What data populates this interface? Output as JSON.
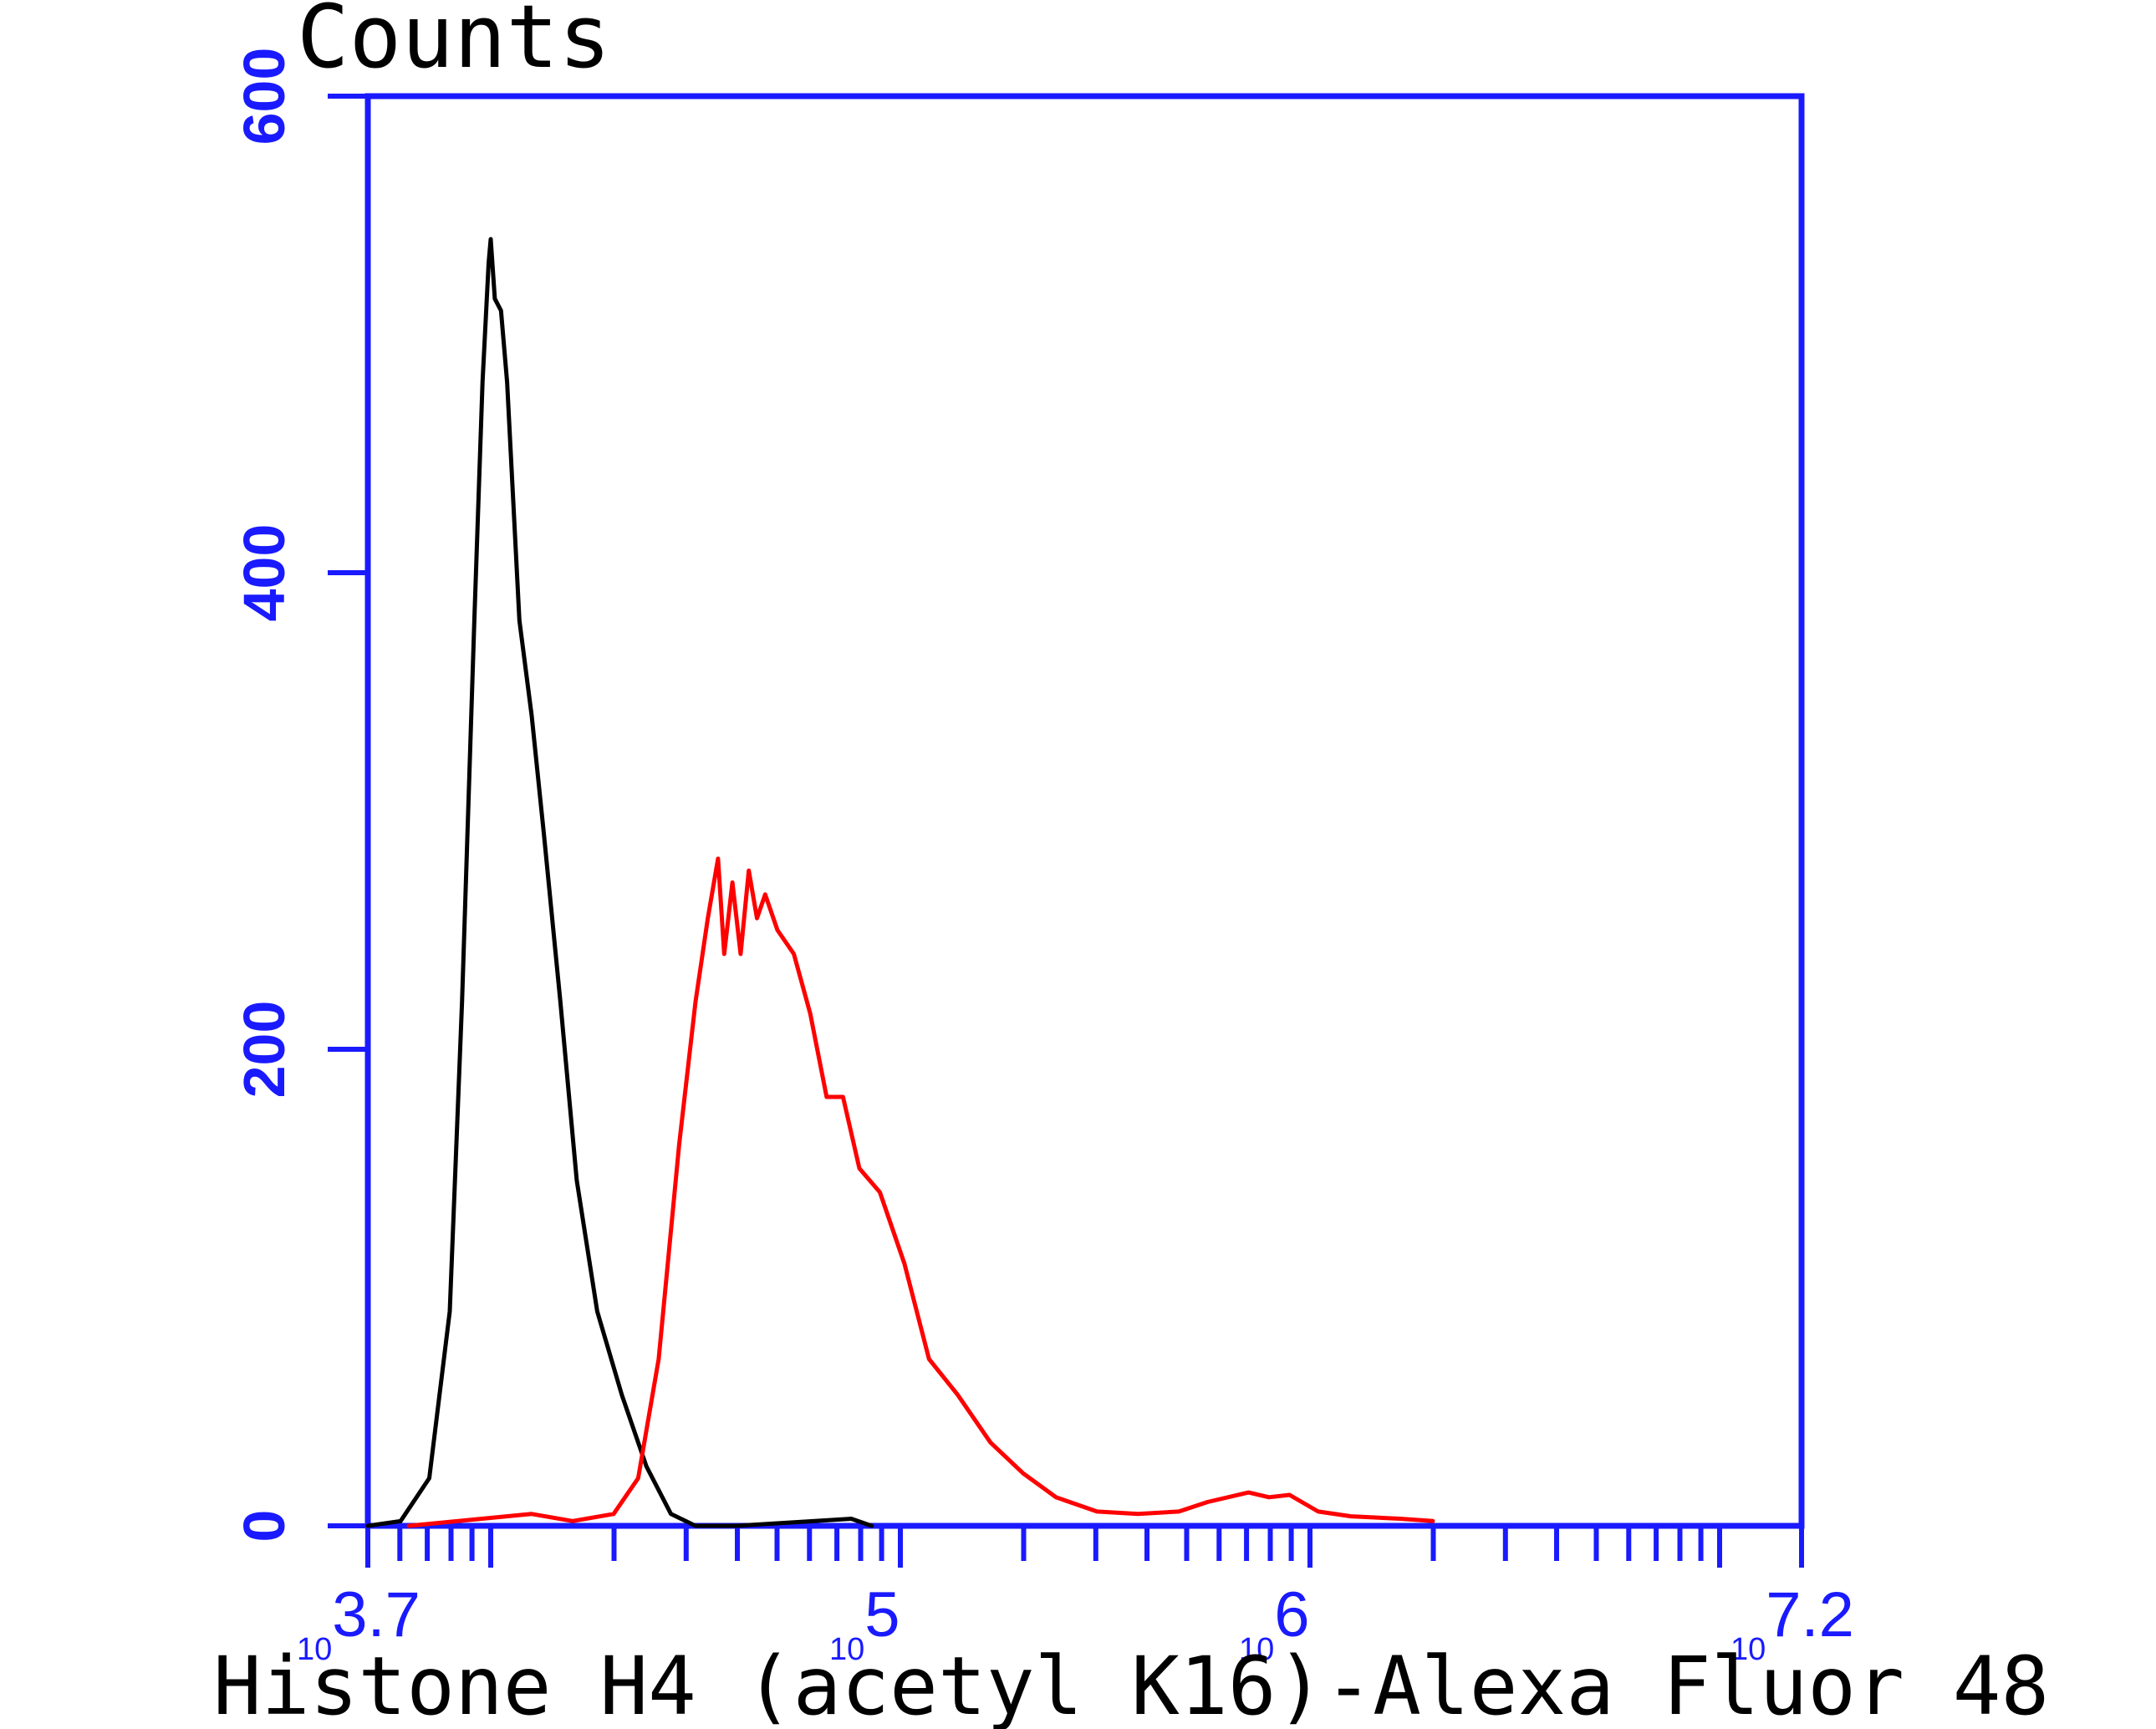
{
  "chart_data": {
    "type": "line",
    "ylabel": "Counts",
    "xlabel": "Histone H4 (acetyl K16)-Alexa Fluor 48",
    "xscale": "log10",
    "xlim_log10": [
      3.7,
      7.2
    ],
    "ylim": [
      0,
      600
    ],
    "grid": false,
    "legend": "none",
    "y_ticks": [
      "0",
      "200",
      "400",
      "600"
    ],
    "x_ticks": [
      {
        "log10": 3.7,
        "base": "10",
        "exp": "3.7"
      },
      {
        "log10": 5,
        "base": "10",
        "exp": "5"
      },
      {
        "log10": 6,
        "base": "10",
        "exp": "6"
      },
      {
        "log10": 7.2,
        "base": "10",
        "exp": "7.2"
      }
    ],
    "colors": {
      "axes": "#1a1aff",
      "series_black": "#000000",
      "series_red": "#ff0000"
    },
    "series": [
      {
        "color": "#000000",
        "points": [
          [
            3.7,
            0
          ],
          [
            3.78,
            2
          ],
          [
            3.85,
            20
          ],
          [
            3.9,
            90
          ],
          [
            3.93,
            220
          ],
          [
            3.96,
            380
          ],
          [
            3.98,
            480
          ],
          [
            3.995,
            530
          ],
          [
            4.0,
            540
          ],
          [
            4.01,
            515
          ],
          [
            4.025,
            510
          ],
          [
            4.04,
            480
          ],
          [
            4.07,
            380
          ],
          [
            4.1,
            340
          ],
          [
            4.13,
            290
          ],
          [
            4.17,
            220
          ],
          [
            4.21,
            145
          ],
          [
            4.26,
            90
          ],
          [
            4.32,
            55
          ],
          [
            4.38,
            25
          ],
          [
            4.44,
            5
          ],
          [
            4.5,
            0
          ],
          [
            4.6,
            0
          ],
          [
            4.88,
            3
          ],
          [
            4.93,
            0
          ]
        ]
      },
      {
        "color": "#ff0000",
        "points": [
          [
            3.8,
            0
          ],
          [
            4.1,
            5
          ],
          [
            4.2,
            2
          ],
          [
            4.3,
            5
          ],
          [
            4.36,
            20
          ],
          [
            4.41,
            70
          ],
          [
            4.46,
            160
          ],
          [
            4.5,
            220
          ],
          [
            4.53,
            255
          ],
          [
            4.555,
            280
          ],
          [
            4.57,
            240
          ],
          [
            4.59,
            270
          ],
          [
            4.61,
            240
          ],
          [
            4.63,
            275
          ],
          [
            4.65,
            255
          ],
          [
            4.67,
            265
          ],
          [
            4.7,
            250
          ],
          [
            4.74,
            240
          ],
          [
            4.78,
            215
          ],
          [
            4.82,
            180
          ],
          [
            4.86,
            180
          ],
          [
            4.9,
            150
          ],
          [
            4.95,
            140
          ],
          [
            5.01,
            110
          ],
          [
            5.07,
            70
          ],
          [
            5.14,
            55
          ],
          [
            5.22,
            35
          ],
          [
            5.3,
            22
          ],
          [
            5.38,
            12
          ],
          [
            5.48,
            6
          ],
          [
            5.58,
            5
          ],
          [
            5.68,
            6
          ],
          [
            5.75,
            10
          ],
          [
            5.85,
            14
          ],
          [
            5.9,
            12
          ],
          [
            5.95,
            13
          ],
          [
            6.02,
            6
          ],
          [
            6.1,
            4
          ],
          [
            6.22,
            3
          ],
          [
            6.3,
            2
          ]
        ]
      }
    ]
  }
}
